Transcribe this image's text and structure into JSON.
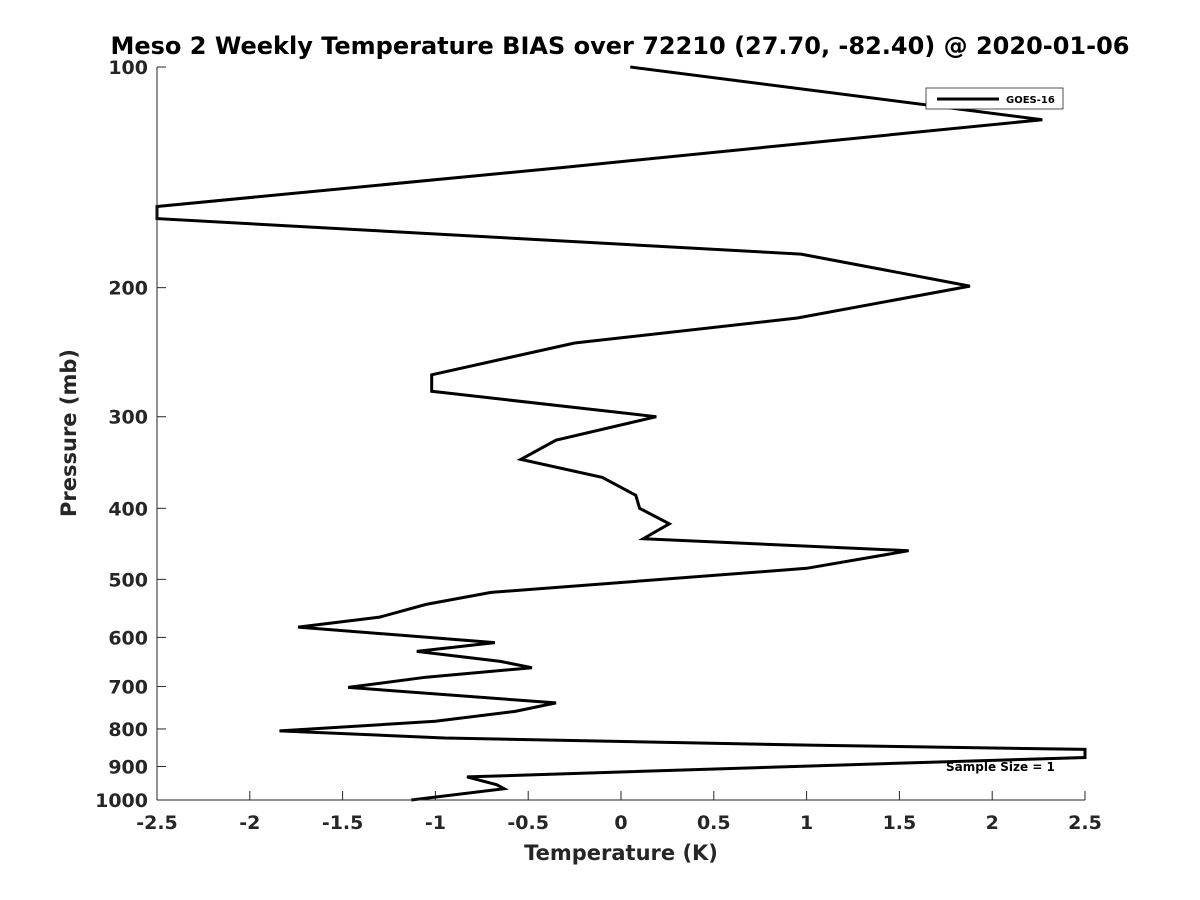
{
  "chart_data": {
    "type": "line",
    "title": "Meso 2 Weekly Temperature BIAS over 72210 (27.70, -82.40) @ 2020-01-06",
    "xlabel": "Temperature (K)",
    "ylabel": "Pressure (mb)",
    "xlim": [
      -2.5,
      2.5
    ],
    "ylim": [
      100,
      1000
    ],
    "yscale": "log",
    "yreversed": true,
    "grid": false,
    "legend_position": "top-right",
    "x_ticks": [
      -2.5,
      -2,
      -1.5,
      -1,
      -0.5,
      0,
      0.5,
      1,
      1.5,
      2,
      2.5
    ],
    "x_tick_labels": [
      "-2.5",
      "-2",
      "-1.5",
      "-1",
      "-0.5",
      "0",
      "0.5",
      "1",
      "1.5",
      "2",
      "2.5"
    ],
    "y_ticks": [
      100,
      200,
      300,
      400,
      500,
      600,
      700,
      800,
      900,
      1000
    ],
    "y_tick_labels": [
      "100",
      "200",
      "300",
      "400",
      "500",
      "600",
      "700",
      "800",
      "900",
      "1000"
    ],
    "annotation": "Sample Size = 1",
    "series": [
      {
        "name": "GOES-16",
        "color": "#000000",
        "points": [
          [
            0.05,
            100
          ],
          [
            2.27,
            118
          ],
          [
            1.0,
            127
          ],
          [
            -0.3,
            137
          ],
          [
            -2.5,
            155
          ],
          [
            -2.5,
            161
          ],
          [
            0.97,
            180
          ],
          [
            1.88,
            199
          ],
          [
            0.95,
            220
          ],
          [
            -0.25,
            238
          ],
          [
            -1.02,
            263
          ],
          [
            -1.02,
            277
          ],
          [
            0.19,
            300
          ],
          [
            -0.35,
            323
          ],
          [
            -0.54,
            343
          ],
          [
            -0.1,
            363
          ],
          [
            0.08,
            384
          ],
          [
            0.1,
            400
          ],
          [
            0.26,
            420
          ],
          [
            0.12,
            440
          ],
          [
            1.55,
            457
          ],
          [
            1.0,
            483
          ],
          [
            -0.7,
            521
          ],
          [
            -1.05,
            541
          ],
          [
            -1.3,
            563
          ],
          [
            -1.74,
            581
          ],
          [
            -0.68,
            610
          ],
          [
            -1.1,
            627
          ],
          [
            -0.65,
            647
          ],
          [
            -0.48,
            660
          ],
          [
            -1.05,
            680
          ],
          [
            -1.47,
            702
          ],
          [
            -0.35,
            737
          ],
          [
            -0.57,
            757
          ],
          [
            -1.0,
            781
          ],
          [
            -1.84,
            805
          ],
          [
            -0.95,
            823
          ],
          [
            1.05,
            842
          ],
          [
            2.5,
            853
          ],
          [
            2.5,
            875
          ],
          [
            1.0,
            899
          ],
          [
            -0.83,
            930
          ],
          [
            -0.67,
            953
          ],
          [
            -0.63,
            965
          ],
          [
            -1.13,
            1000
          ]
        ]
      }
    ]
  }
}
